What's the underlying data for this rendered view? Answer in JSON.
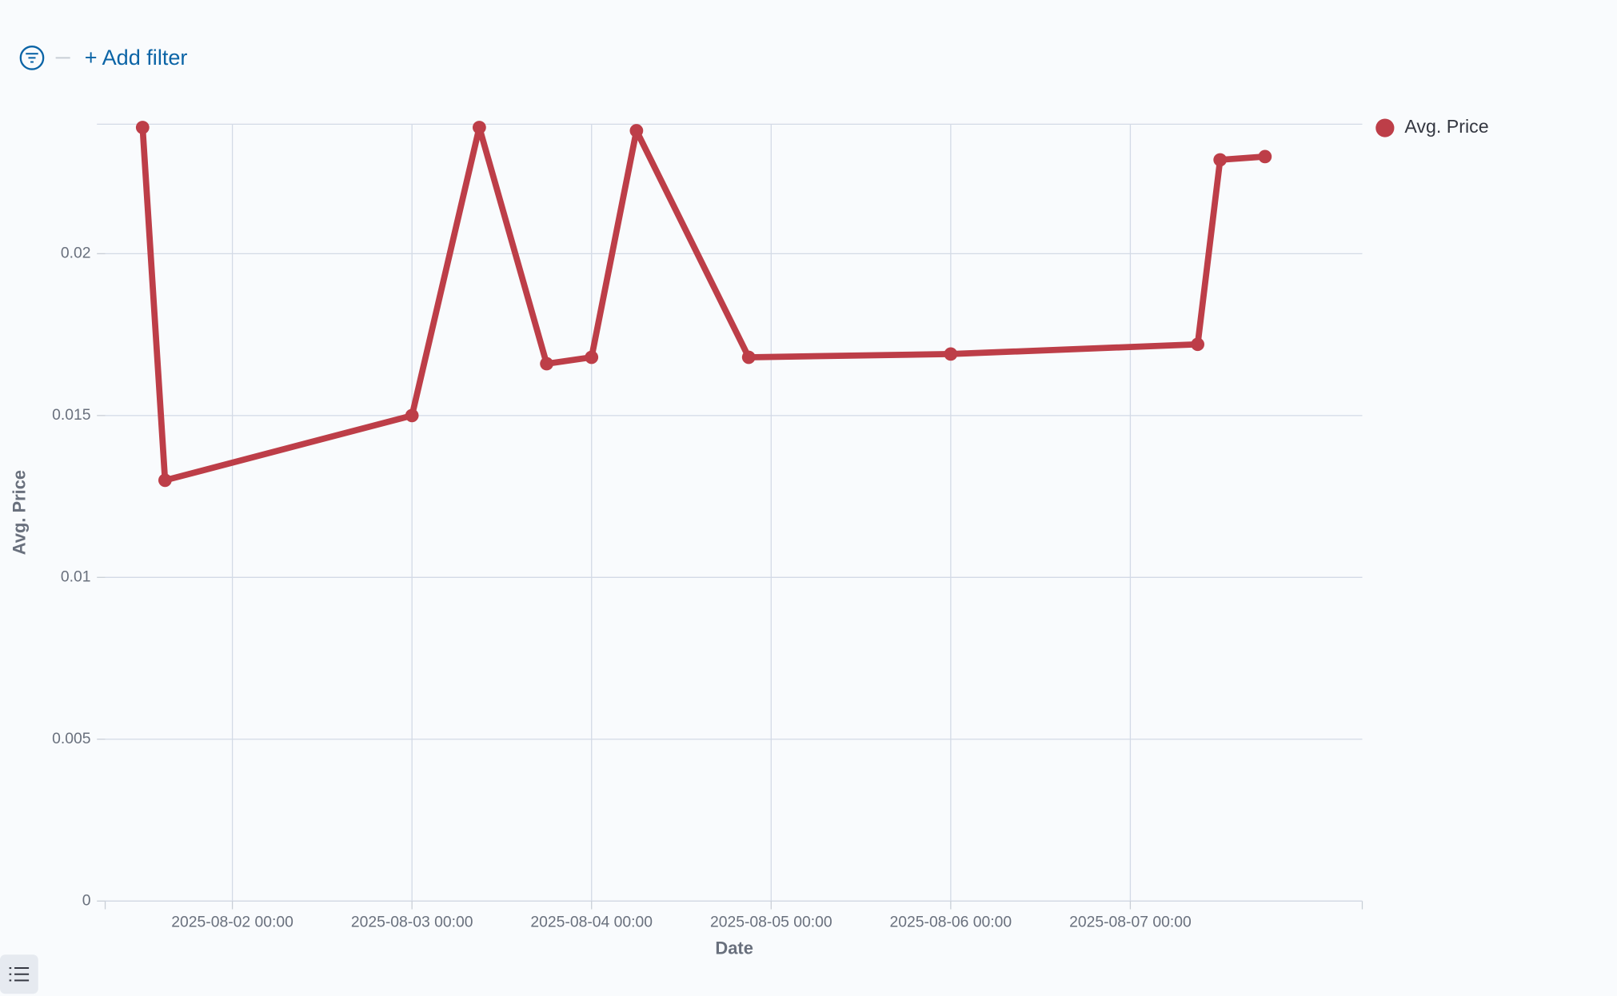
{
  "toolbar": {
    "add_filter": "+ Add filter"
  },
  "chart_data": {
    "type": "line",
    "x_label": "Date",
    "y_label": "Avg. Price",
    "x": [
      "2025-08-01 12:00",
      "2025-08-01 15:00",
      "2025-08-03 00:00",
      "2025-08-03 09:00",
      "2025-08-03 18:00",
      "2025-08-04 00:00",
      "2025-08-04 06:00",
      "2025-08-04 21:00",
      "2025-08-06 00:00",
      "2025-08-07 09:00",
      "2025-08-07 12:00",
      "2025-08-07 18:00"
    ],
    "series": [
      {
        "name": "Avg. Price",
        "color": "#bd3e48",
        "values": [
          0.0239,
          0.013,
          0.015,
          0.0239,
          0.0166,
          0.0168,
          0.0238,
          0.0168,
          0.0169,
          0.0172,
          0.0229,
          0.023
        ]
      }
    ],
    "xlim": [
      "2025-08-01 07:00",
      "2025-08-08 07:00"
    ],
    "xticks": [
      "2025-08-02 00:00",
      "2025-08-03 00:00",
      "2025-08-04 00:00",
      "2025-08-05 00:00",
      "2025-08-06 00:00",
      "2025-08-07 00:00"
    ],
    "ylim": [
      0,
      0.024
    ],
    "yticks": [
      0,
      0.005,
      0.01,
      0.015,
      0.02
    ],
    "grid": true,
    "legend": "top-right"
  }
}
